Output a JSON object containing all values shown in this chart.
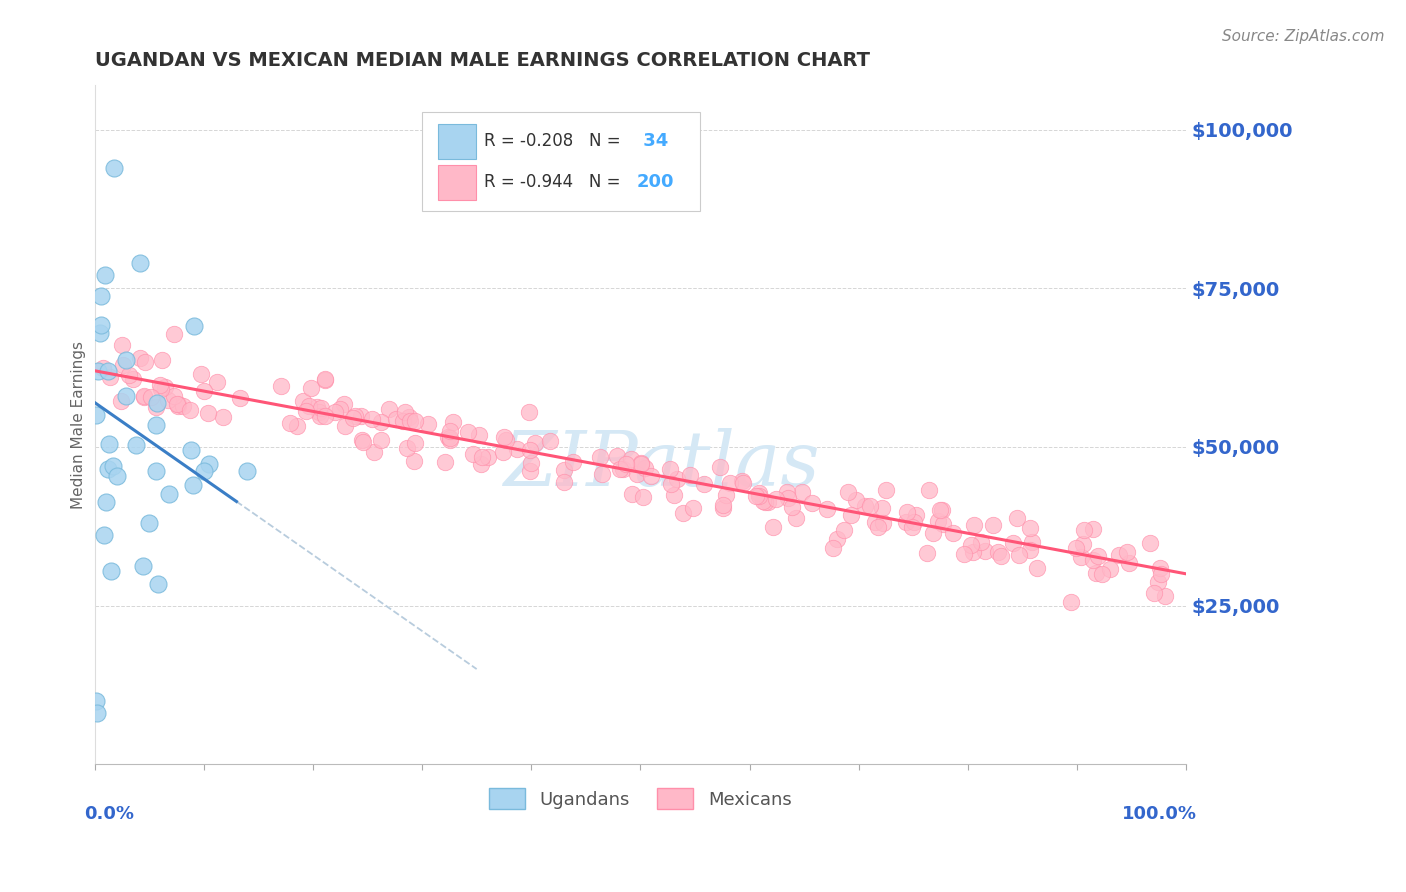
{
  "title": "UGANDAN VS MEXICAN MEDIAN MALE EARNINGS CORRELATION CHART",
  "source_text": "Source: ZipAtlas.com",
  "ylabel": "Median Male Earnings",
  "y_ticks": [
    0,
    25000,
    50000,
    75000,
    100000
  ],
  "y_tick_labels": [
    "",
    "$25,000",
    "$50,000",
    "$75,000",
    "$100,000"
  ],
  "xmin": 0.0,
  "xmax": 1.0,
  "ymin": 0,
  "ymax": 107000,
  "ugandan_R": -0.208,
  "ugandan_N": 34,
  "mexican_R": -0.944,
  "mexican_N": 200,
  "ugandan_color": "#A8D4F0",
  "ugandan_edge_color": "#7ABADC",
  "mexican_color": "#FFB8C8",
  "mexican_edge_color": "#FF8FAA",
  "trend_ugandan_color": "#3A7EC6",
  "trend_mexican_color": "#FF5577",
  "dashed_line_color": "#B8CCDD",
  "watermark_color": "#D5E8F5",
  "grid_color": "#CCCCCC",
  "title_color": "#333333",
  "axis_label_color": "#3366CC",
  "legend_text_color": "#333333",
  "legend_value_color": "#3366CC",
  "legend_n_color": "#44AAFF",
  "background_color": "#FFFFFF",
  "mx_intercept": 62000,
  "mx_slope": -32000,
  "ug_intercept": 57000,
  "ug_slope": -120000
}
